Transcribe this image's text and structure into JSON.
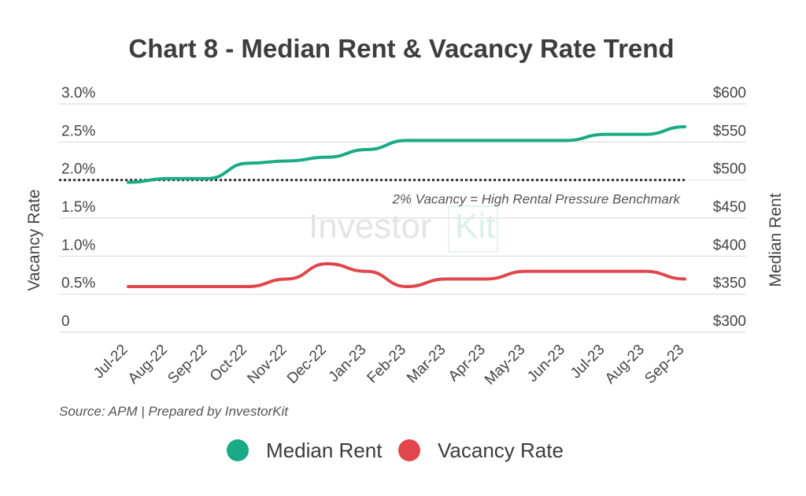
{
  "chart_data": {
    "type": "line",
    "title": "Chart 8 - Median Rent & Vacancy Rate Trend",
    "categories": [
      "Jul-22",
      "Aug-22",
      "Sep-22",
      "Oct-22",
      "Nov-22",
      "Dec-22",
      "Jan-23",
      "Feb-23",
      "Mar-23",
      "Apr-23",
      "May-23",
      "Jun-23",
      "Jul-23",
      "Aug-23",
      "Sep-23"
    ],
    "y_left": {
      "label": "Vacancy Rate",
      "ticks": [
        "0",
        "0.5%",
        "1.0%",
        "1.5%",
        "2.0%",
        "2.5%",
        "3.0%"
      ],
      "range": [
        0,
        3.0
      ]
    },
    "y_right": {
      "label": "Median Rent",
      "ticks": [
        "$300",
        "$350",
        "$400",
        "$450",
        "$500",
        "$550",
        "$600"
      ],
      "range": [
        300,
        600
      ]
    },
    "series": [
      {
        "name": "Median Rent",
        "axis": "right",
        "color": "#1aab86",
        "values": [
          497,
          502,
          502,
          522,
          525,
          530,
          540,
          552,
          552,
          552,
          552,
          552,
          560,
          560,
          570
        ]
      },
      {
        "name": "Vacancy Rate",
        "axis": "left",
        "color": "#e0464b",
        "values": [
          0.6,
          0.6,
          0.6,
          0.6,
          0.7,
          0.9,
          0.8,
          0.6,
          0.7,
          0.7,
          0.8,
          0.8,
          0.8,
          0.8,
          0.7
        ]
      }
    ],
    "reference_line": {
      "axis": "left",
      "value": 2.0,
      "style": "dotted",
      "label": "2% Vacancy = High Rental Pressure Benchmark"
    },
    "grid": true,
    "legend": "bottom-center",
    "source": "Source: APM | Prepared by InvestorKit",
    "watermark": "InvestorKit"
  }
}
